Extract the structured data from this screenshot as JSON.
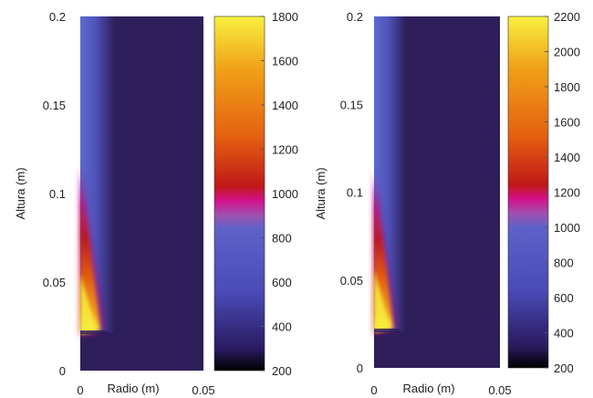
{
  "chart_data": [
    {
      "type": "heatmap",
      "xlabel": "Radio (m)",
      "ylabel": "Altura (m)",
      "xlim": [
        0,
        0.05
      ],
      "ylim": [
        0,
        0.2
      ],
      "x_ticks": [
        "0",
        "0.05"
      ],
      "y_ticks": [
        "0",
        "0.05",
        "0.1",
        "0.15",
        "0.2"
      ],
      "colorbar": {
        "min": 200,
        "max": 1800,
        "ticks": [
          "200",
          "400",
          "600",
          "800",
          "1000",
          "1200",
          "1400",
          "1600",
          "1800"
        ]
      },
      "background_value": 300,
      "flame_peak_value": 1800,
      "flame_base_height": 0.022
    },
    {
      "type": "heatmap",
      "xlabel": "Radio (m)",
      "ylabel": "Altura (m)",
      "xlim": [
        0,
        0.05
      ],
      "ylim": [
        0,
        0.2
      ],
      "x_ticks": [
        "0",
        "0.05"
      ],
      "y_ticks": [
        "0",
        "0.05",
        "0.1",
        "0.15",
        "0.2"
      ],
      "colorbar": {
        "min": 200,
        "max": 2200,
        "ticks": [
          "200",
          "400",
          "600",
          "800",
          "1000",
          "1200",
          "1400",
          "1600",
          "1800",
          "2000",
          "2200"
        ]
      },
      "background_value": 300,
      "flame_peak_value": 2200,
      "flame_base_height": 0.022
    }
  ],
  "palette": {
    "colormap": [
      "#000000",
      "#2a1a5e",
      "#4a4ab8",
      "#5d62c8",
      "#a050b0",
      "#d4108c",
      "#c01818",
      "#e46010",
      "#f0a018",
      "#f8f040"
    ],
    "background": "#2e1e5a",
    "tick_line": "#555555"
  }
}
